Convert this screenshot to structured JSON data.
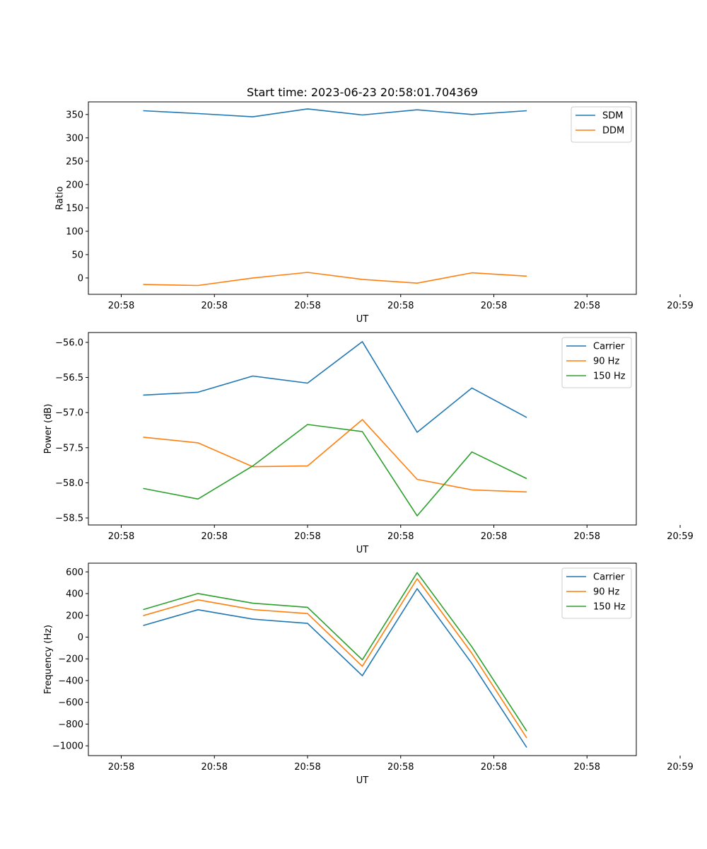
{
  "figure": {
    "title": "Start time: 2023-06-23 20:58:01.704369"
  },
  "chart_data": [
    {
      "type": "line",
      "title": "Start time: 2023-06-23 20:58:01.704369",
      "xlabel": "UT",
      "ylabel": "Ratio",
      "x": [
        1,
        2,
        3,
        4,
        5,
        6,
        7,
        8
      ],
      "xlim": [
        0,
        10
      ],
      "xticks": [
        0.6,
        2.3,
        4.0,
        5.7,
        7.4,
        9.1,
        10.8
      ],
      "xtick_labels": [
        "20:58",
        "20:58",
        "20:58",
        "20:58",
        "20:58",
        "20:58",
        "20:59"
      ],
      "ylim": [
        -35,
        377
      ],
      "yticks": [
        0,
        50,
        100,
        150,
        200,
        250,
        300,
        350
      ],
      "ytick_labels": [
        "0",
        "50",
        "100",
        "150",
        "200",
        "250",
        "300",
        "350"
      ],
      "legend": "top-right",
      "grid": false,
      "series": [
        {
          "name": "SDM",
          "color": "#1f77b4",
          "values": [
            358,
            352,
            345,
            362,
            349,
            360,
            350,
            358
          ]
        },
        {
          "name": "DDM",
          "color": "#ff7f0e",
          "values": [
            -14,
            -16,
            0,
            12,
            -3,
            -11,
            11,
            4
          ]
        }
      ]
    },
    {
      "type": "line",
      "xlabel": "UT",
      "ylabel": "Power (dB)",
      "x": [
        1,
        2,
        3,
        4,
        5,
        6,
        7,
        8
      ],
      "xlim": [
        0,
        10
      ],
      "xticks": [
        0.6,
        2.3,
        4.0,
        5.7,
        7.4,
        9.1,
        10.8
      ],
      "xtick_labels": [
        "20:58",
        "20:58",
        "20:58",
        "20:58",
        "20:58",
        "20:58",
        "20:59"
      ],
      "ylim": [
        -58.6,
        -55.86
      ],
      "yticks": [
        -58.5,
        -58.0,
        -57.5,
        -57.0,
        -56.5,
        -56.0
      ],
      "ytick_labels": [
        "−58.5",
        "−58.0",
        "−57.5",
        "−57.0",
        "−56.5",
        "−56.0"
      ],
      "legend": "top-right",
      "grid": false,
      "series": [
        {
          "name": "Carrier",
          "color": "#1f77b4",
          "values": [
            -56.75,
            -56.71,
            -56.48,
            -56.58,
            -55.99,
            -57.28,
            -56.65,
            -57.07
          ]
        },
        {
          "name": "90 Hz",
          "color": "#ff7f0e",
          "values": [
            -57.35,
            -57.43,
            -57.77,
            -57.76,
            -57.1,
            -57.95,
            -58.1,
            -58.13
          ]
        },
        {
          "name": "150 Hz",
          "color": "#2ca02c",
          "values": [
            -58.08,
            -58.23,
            -57.76,
            -57.17,
            -57.27,
            -58.47,
            -57.56,
            -57.94
          ]
        }
      ]
    },
    {
      "type": "line",
      "xlabel": "UT",
      "ylabel": "Frequency (Hz)",
      "x": [
        1,
        2,
        3,
        4,
        5,
        6,
        7,
        8
      ],
      "xlim": [
        0,
        10
      ],
      "xticks": [
        0.6,
        2.3,
        4.0,
        5.7,
        7.4,
        9.1,
        10.8
      ],
      "xtick_labels": [
        "20:58",
        "20:58",
        "20:58",
        "20:58",
        "20:58",
        "20:58",
        "20:59"
      ],
      "ylim": [
        -1090,
        680
      ],
      "yticks": [
        -1000,
        -800,
        -600,
        -400,
        -200,
        0,
        200,
        400,
        600
      ],
      "ytick_labels": [
        "−1000",
        "−800",
        "−600",
        "−400",
        "−200",
        "0",
        "200",
        "400",
        "600"
      ],
      "legend": "top-right",
      "grid": false,
      "series": [
        {
          "name": "Carrier",
          "color": "#1f77b4",
          "values": [
            107,
            252,
            165,
            126,
            -355,
            446,
            -243,
            -1015
          ]
        },
        {
          "name": "90 Hz",
          "color": "#ff7f0e",
          "values": [
            197,
            343,
            253,
            217,
            -268,
            537,
            -150,
            -927
          ]
        },
        {
          "name": "150 Hz",
          "color": "#2ca02c",
          "values": [
            253,
            401,
            312,
            274,
            -209,
            593,
            -90,
            -864
          ]
        }
      ]
    }
  ]
}
